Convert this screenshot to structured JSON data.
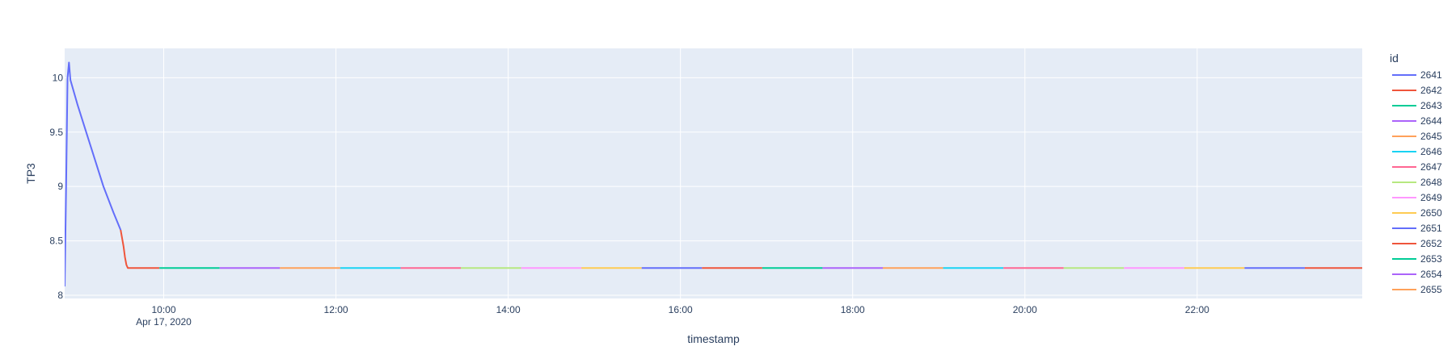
{
  "chart_data": {
    "type": "line",
    "xlabel": "timestamp",
    "ylabel": "TP3",
    "x_range": [
      "2020-04-17T08:51",
      "2020-04-17T23:55"
    ],
    "y_range": [
      7.97,
      10.27
    ],
    "x_ticks": [
      {
        "t": "2020-04-17T10:00",
        "label": "10:00",
        "sublabel": "Apr 17, 2020"
      },
      {
        "t": "2020-04-17T12:00",
        "label": "12:00"
      },
      {
        "t": "2020-04-17T14:00",
        "label": "14:00"
      },
      {
        "t": "2020-04-17T16:00",
        "label": "16:00"
      },
      {
        "t": "2020-04-17T18:00",
        "label": "18:00"
      },
      {
        "t": "2020-04-17T20:00",
        "label": "20:00"
      },
      {
        "t": "2020-04-17T22:00",
        "label": "22:00"
      }
    ],
    "y_ticks": [
      8,
      8.5,
      9,
      9.5,
      10
    ],
    "grid": true,
    "plot_bgcolor": "#e5ecf6",
    "legend": {
      "title": "id",
      "placement": "right"
    },
    "series": [
      {
        "name": "2641",
        "color": "#636efa",
        "points": [
          [
            "2020-04-17T08:51",
            8.08
          ],
          [
            "2020-04-17T08:52",
            9.0
          ],
          [
            "2020-04-17T08:53",
            10.0
          ],
          [
            "2020-04-17T08:54",
            10.14
          ],
          [
            "2020-04-17T08:55",
            9.98
          ],
          [
            "2020-04-17T09:00",
            9.75
          ],
          [
            "2020-04-17T09:06",
            9.5
          ],
          [
            "2020-04-17T09:12",
            9.25
          ],
          [
            "2020-04-17T09:18",
            9.0
          ],
          [
            "2020-04-17T09:25",
            8.76
          ],
          [
            "2020-04-17T09:30",
            8.6
          ]
        ]
      },
      {
        "name": "2642",
        "color": "#EF553B",
        "points": [
          [
            "2020-04-17T09:30",
            8.6
          ],
          [
            "2020-04-17T09:32",
            8.45
          ],
          [
            "2020-04-17T09:33",
            8.35
          ],
          [
            "2020-04-17T09:34",
            8.28
          ],
          [
            "2020-04-17T09:35",
            8.25
          ],
          [
            "2020-04-17T09:57",
            8.25
          ]
        ]
      },
      {
        "name": "2643",
        "color": "#00cc96",
        "points": [
          [
            "2020-04-17T09:57",
            8.25
          ],
          [
            "2020-04-17T10:39",
            8.25
          ]
        ]
      },
      {
        "name": "2644",
        "color": "#ab63fa",
        "points": [
          [
            "2020-04-17T10:39",
            8.25
          ],
          [
            "2020-04-17T11:21",
            8.25
          ]
        ]
      },
      {
        "name": "2645",
        "color": "#FFA15A",
        "points": [
          [
            "2020-04-17T11:21",
            8.25
          ],
          [
            "2020-04-17T12:03",
            8.25
          ]
        ]
      },
      {
        "name": "2646",
        "color": "#19d3f3",
        "points": [
          [
            "2020-04-17T12:03",
            8.25
          ],
          [
            "2020-04-17T12:45",
            8.25
          ]
        ]
      },
      {
        "name": "2647",
        "color": "#FF6692",
        "points": [
          [
            "2020-04-17T12:45",
            8.25
          ],
          [
            "2020-04-17T13:27",
            8.25
          ]
        ]
      },
      {
        "name": "2648",
        "color": "#B6E880",
        "points": [
          [
            "2020-04-17T13:27",
            8.25
          ],
          [
            "2020-04-17T14:09",
            8.25
          ]
        ]
      },
      {
        "name": "2649",
        "color": "#FF97FF",
        "points": [
          [
            "2020-04-17T14:09",
            8.25
          ],
          [
            "2020-04-17T14:51",
            8.25
          ]
        ]
      },
      {
        "name": "2650",
        "color": "#FECB52",
        "points": [
          [
            "2020-04-17T14:51",
            8.25
          ],
          [
            "2020-04-17T15:33",
            8.25
          ]
        ]
      },
      {
        "name": "2651",
        "color": "#636efa",
        "points": [
          [
            "2020-04-17T15:33",
            8.25
          ],
          [
            "2020-04-17T16:15",
            8.25
          ]
        ]
      },
      {
        "name": "2652",
        "color": "#EF553B",
        "points": [
          [
            "2020-04-17T16:15",
            8.25
          ],
          [
            "2020-04-17T16:57",
            8.25
          ]
        ]
      },
      {
        "name": "2653",
        "color": "#00cc96",
        "points": [
          [
            "2020-04-17T16:57",
            8.25
          ],
          [
            "2020-04-17T17:39",
            8.25
          ]
        ]
      },
      {
        "name": "2654",
        "color": "#ab63fa",
        "points": [
          [
            "2020-04-17T17:39",
            8.25
          ],
          [
            "2020-04-17T18:21",
            8.25
          ]
        ]
      },
      {
        "name": "2655",
        "color": "#FFA15A",
        "points": [
          [
            "2020-04-17T18:21",
            8.25
          ],
          [
            "2020-04-17T19:03",
            8.25
          ]
        ]
      },
      {
        "color": "#19d3f3",
        "points": [
          [
            "2020-04-17T19:03",
            8.25
          ],
          [
            "2020-04-17T19:45",
            8.25
          ]
        ]
      },
      {
        "color": "#FF6692",
        "points": [
          [
            "2020-04-17T19:45",
            8.25
          ],
          [
            "2020-04-17T20:27",
            8.25
          ]
        ]
      },
      {
        "color": "#B6E880",
        "points": [
          [
            "2020-04-17T20:27",
            8.25
          ],
          [
            "2020-04-17T21:09",
            8.25
          ]
        ]
      },
      {
        "color": "#FF97FF",
        "points": [
          [
            "2020-04-17T21:09",
            8.25
          ],
          [
            "2020-04-17T21:51",
            8.25
          ]
        ]
      },
      {
        "color": "#FECB52",
        "points": [
          [
            "2020-04-17T21:51",
            8.25
          ],
          [
            "2020-04-17T22:33",
            8.25
          ]
        ]
      },
      {
        "color": "#636efa",
        "points": [
          [
            "2020-04-17T22:33",
            8.25
          ],
          [
            "2020-04-17T23:15",
            8.25
          ]
        ]
      },
      {
        "color": "#EF553B",
        "points": [
          [
            "2020-04-17T23:15",
            8.25
          ],
          [
            "2020-04-17T23:55",
            8.25
          ]
        ]
      },
      {
        "color": "#00cc96",
        "points": [
          [
            "2020-04-17T23:55",
            8.25
          ],
          [
            "2020-04-17T23:57",
            8.25
          ]
        ]
      }
    ]
  }
}
